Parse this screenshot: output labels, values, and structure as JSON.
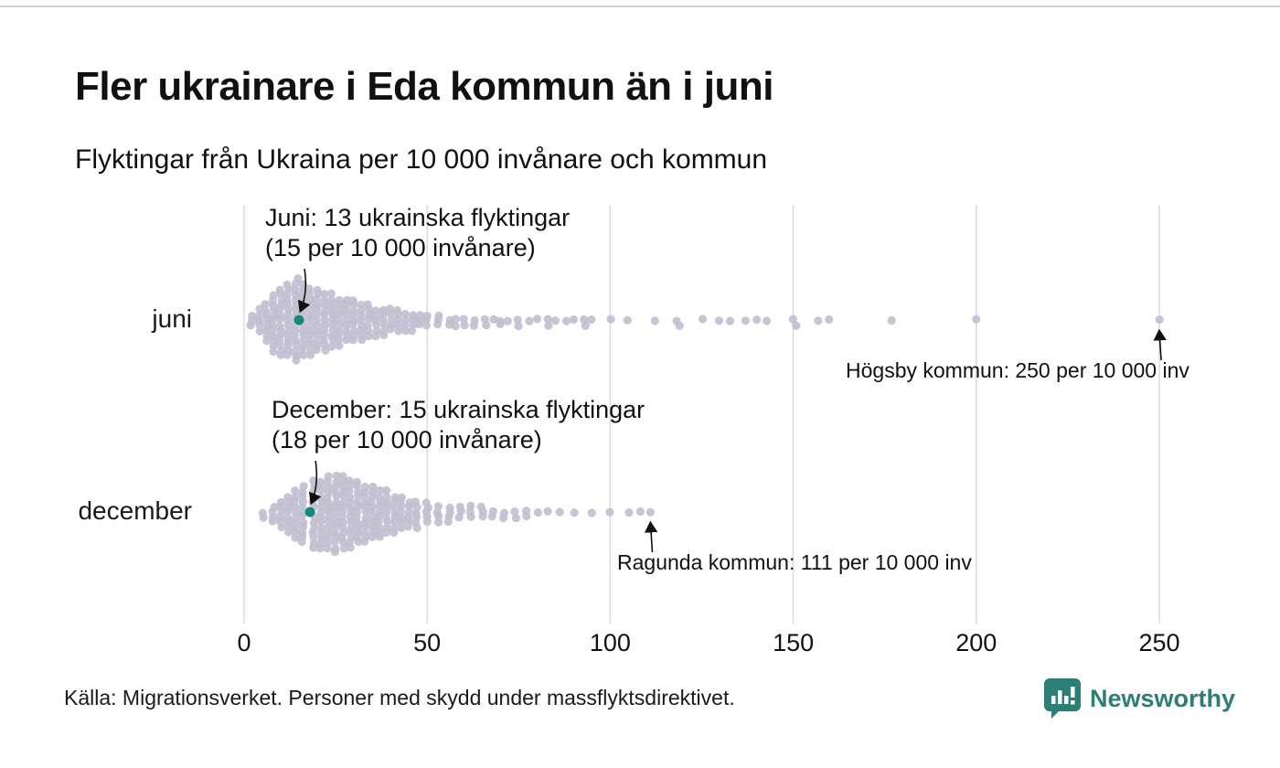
{
  "header": {
    "title": "Fler ukrainare i Eda kommun än i juni",
    "subtitle": "Flyktingar från Ukraina per 10 000 invånare och kommun"
  },
  "footer": {
    "source": "Källa: Migrationsverket. Personer med skydd under massflyktsdirektivet.",
    "brand": "Newsworthy"
  },
  "chart_data": {
    "type": "scatter",
    "variant": "beeswarm",
    "title": "Fler ukrainare i Eda kommun än i juni",
    "subtitle": "Flyktingar från Ukraina per 10 000 invånare och kommun",
    "xlabel": "Flyktingar från Ukraina per 10 000 invånare",
    "xlim": [
      0,
      260
    ],
    "xticks": [
      0,
      50,
      100,
      150,
      200,
      250
    ],
    "grid": "vertical",
    "legend": "none",
    "colors": {
      "dot": "#c0bfd0",
      "highlight": "#13897b",
      "grid": "#d9d9d9",
      "arrow": "#111111",
      "brand": "#2d7e77"
    },
    "series": [
      {
        "name": "juni",
        "highlight": {
          "value": 15,
          "label_line1": "Juni: 13 ukrainska flyktingar",
          "label_line2": "(15 per 10 000 invånare)"
        },
        "values": [
          2,
          2,
          2,
          4,
          4,
          4,
          4,
          4,
          6,
          6,
          6,
          6,
          6,
          6,
          6,
          6,
          8,
          8,
          8,
          8,
          8,
          8,
          8,
          8,
          8,
          8,
          8,
          8,
          10,
          10,
          10,
          10,
          10,
          10,
          10,
          10,
          10,
          10,
          10,
          10,
          10,
          10,
          12,
          12,
          12,
          12,
          12,
          12,
          12,
          12,
          12,
          12,
          12,
          12,
          12,
          12,
          12,
          14,
          14,
          14,
          14,
          14,
          14,
          14,
          14,
          14,
          14,
          14,
          14,
          14,
          14,
          14,
          14,
          15,
          16,
          16,
          16,
          16,
          16,
          16,
          16,
          16,
          16,
          16,
          16,
          16,
          16,
          16,
          16,
          18,
          18,
          18,
          18,
          18,
          18,
          18,
          18,
          18,
          18,
          18,
          18,
          18,
          18,
          20,
          20,
          20,
          20,
          20,
          20,
          20,
          20,
          20,
          20,
          20,
          20,
          20,
          22,
          22,
          22,
          22,
          22,
          22,
          22,
          22,
          22,
          22,
          22,
          22,
          24,
          24,
          24,
          24,
          24,
          24,
          24,
          24,
          24,
          24,
          24,
          26,
          26,
          26,
          26,
          26,
          26,
          26,
          26,
          26,
          26,
          28,
          28,
          28,
          28,
          28,
          28,
          28,
          28,
          28,
          30,
          30,
          30,
          30,
          30,
          30,
          30,
          30,
          30,
          32,
          32,
          32,
          32,
          32,
          32,
          32,
          32,
          34,
          34,
          34,
          34,
          34,
          34,
          34,
          36,
          36,
          36,
          36,
          36,
          36,
          38,
          38,
          38,
          38,
          38,
          38,
          40,
          40,
          40,
          40,
          40,
          42,
          42,
          42,
          42,
          42,
          44,
          44,
          44,
          44,
          46,
          46,
          46,
          46,
          48,
          48,
          48,
          50,
          50,
          50,
          53,
          53,
          53,
          56,
          56,
          58,
          58,
          60,
          60,
          63,
          63,
          66,
          66,
          68,
          70,
          70,
          72,
          75,
          75,
          78,
          80,
          83,
          83,
          85,
          88,
          90,
          93,
          93,
          95,
          100,
          105,
          112,
          118,
          119,
          125,
          130,
          133,
          137,
          140,
          143,
          150,
          151,
          157,
          160,
          177,
          200,
          250
        ]
      },
      {
        "name": "december",
        "highlight": {
          "value": 18,
          "label_line1": "December: 15 ukrainska flyktingar",
          "label_line2": "(18 per 10 000 invånare)"
        },
        "values": [
          5,
          5,
          8,
          8,
          8,
          8,
          10,
          10,
          10,
          10,
          10,
          10,
          12,
          12,
          12,
          12,
          12,
          12,
          12,
          12,
          14,
          14,
          14,
          14,
          14,
          14,
          14,
          14,
          14,
          14,
          16,
          16,
          16,
          16,
          16,
          16,
          16,
          16,
          16,
          16,
          16,
          16,
          18,
          19,
          19,
          19,
          19,
          19,
          19,
          19,
          19,
          19,
          19,
          19,
          19,
          19,
          21,
          21,
          21,
          21,
          21,
          21,
          21,
          21,
          21,
          21,
          21,
          21,
          21,
          21,
          23,
          23,
          23,
          23,
          23,
          23,
          23,
          23,
          23,
          23,
          23,
          23,
          23,
          23,
          23,
          25,
          25,
          25,
          25,
          25,
          25,
          25,
          25,
          25,
          25,
          25,
          25,
          25,
          25,
          25,
          25,
          27,
          27,
          27,
          27,
          27,
          27,
          27,
          27,
          27,
          27,
          27,
          27,
          27,
          27,
          27,
          29,
          29,
          29,
          29,
          29,
          29,
          29,
          29,
          29,
          29,
          29,
          29,
          29,
          29,
          31,
          31,
          31,
          31,
          31,
          31,
          31,
          31,
          31,
          31,
          31,
          31,
          31,
          33,
          33,
          33,
          33,
          33,
          33,
          33,
          33,
          33,
          33,
          33,
          33,
          35,
          35,
          35,
          35,
          35,
          35,
          35,
          35,
          35,
          35,
          35,
          37,
          37,
          37,
          37,
          37,
          37,
          37,
          37,
          37,
          37,
          39,
          39,
          39,
          39,
          39,
          39,
          39,
          39,
          39,
          41,
          41,
          41,
          41,
          41,
          41,
          41,
          41,
          43,
          43,
          43,
          43,
          43,
          43,
          43,
          45,
          45,
          45,
          45,
          45,
          45,
          47,
          47,
          47,
          47,
          47,
          47,
          50,
          50,
          50,
          50,
          50,
          53,
          53,
          53,
          53,
          56,
          56,
          56,
          56,
          59,
          59,
          59,
          62,
          62,
          62,
          65,
          65,
          65,
          68,
          68,
          71,
          71,
          74,
          74,
          77,
          77,
          80,
          83,
          86,
          90,
          95,
          100,
          105,
          108,
          111
        ]
      }
    ],
    "outlier_annotations": [
      {
        "series": "juni",
        "value": 250,
        "text": "Högsby kommun: 250 per 10 000 inv"
      },
      {
        "series": "december",
        "value": 111,
        "text": "Ragunda kommun: 111 per 10 000 inv"
      }
    ]
  }
}
